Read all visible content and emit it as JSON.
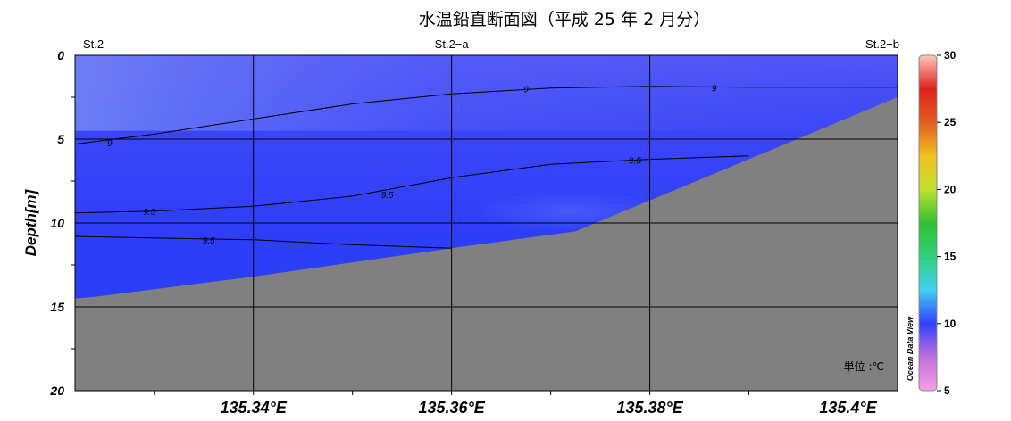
{
  "chart_data": {
    "type": "contour-section",
    "title": "水温鉛直断面図（平成 25 年  2 月分）",
    "ylabel": "Depth[m]",
    "unit_label": "単位 :℃",
    "credit": "Ocean Data View",
    "x_range": [
      135.322,
      135.405
    ],
    "y_range": [
      0,
      20
    ],
    "y_inverted": true,
    "xticks": [
      {
        "value": 135.34,
        "label": "135.34°E"
      },
      {
        "value": 135.36,
        "label": "135.36°E"
      },
      {
        "value": 135.38,
        "label": "135.38°E"
      },
      {
        "value": 135.4,
        "label": "135.4°E"
      }
    ],
    "yticks": [
      0,
      5,
      10,
      15,
      20
    ],
    "stations": [
      {
        "name": "St.2",
        "x": 135.322
      },
      {
        "name": "St.2−a",
        "x": 135.36
      },
      {
        "name": "St.2−b",
        "x": 135.405
      }
    ],
    "colorbar": {
      "min": 5,
      "max": 30,
      "ticks": [
        5,
        10,
        15,
        20,
        25,
        30
      ],
      "stops": [
        {
          "value": 5,
          "color": "#f4a0e8"
        },
        {
          "value": 7.5,
          "color": "#c070d8"
        },
        {
          "value": 10,
          "color": "#3040ff"
        },
        {
          "value": 12.5,
          "color": "#40d0f0"
        },
        {
          "value": 15,
          "color": "#30d080"
        },
        {
          "value": 17.5,
          "color": "#30c030"
        },
        {
          "value": 20,
          "color": "#c0e030"
        },
        {
          "value": 22.5,
          "color": "#f0c020"
        },
        {
          "value": 25,
          "color": "#e06020"
        },
        {
          "value": 27.5,
          "color": "#e02020"
        },
        {
          "value": 30,
          "color": "#f8c8b8"
        }
      ]
    },
    "contours": [
      {
        "level": "9",
        "points": [
          [
            135.322,
            5.3
          ],
          [
            135.33,
            4.7
          ],
          [
            135.34,
            3.8
          ],
          [
            135.35,
            2.9
          ],
          [
            135.36,
            2.3
          ],
          [
            135.37,
            1.95
          ],
          [
            135.38,
            1.85
          ],
          [
            135.39,
            1.9
          ],
          [
            135.405,
            1.9
          ]
        ],
        "labels": [
          [
            135.3255,
            5.2
          ],
          [
            135.3675,
            2.0
          ],
          [
            135.3865,
            1.95
          ]
        ]
      },
      {
        "level": "9.5",
        "points": [
          [
            135.322,
            9.4
          ],
          [
            135.33,
            9.3
          ],
          [
            135.34,
            9.0
          ],
          [
            135.35,
            8.4
          ],
          [
            135.36,
            7.3
          ],
          [
            135.37,
            6.5
          ],
          [
            135.38,
            6.2
          ],
          [
            135.39,
            6.0
          ]
        ],
        "labels": [
          [
            135.3295,
            9.3
          ],
          [
            135.3535,
            8.3
          ],
          [
            135.3785,
            6.25
          ]
        ]
      },
      {
        "level": "9.5",
        "points": [
          [
            135.322,
            10.8
          ],
          [
            135.33,
            10.9
          ],
          [
            135.34,
            11.0
          ],
          [
            135.35,
            11.3
          ],
          [
            135.36,
            11.5
          ]
        ],
        "labels": [
          [
            135.3355,
            11.0
          ]
        ]
      }
    ],
    "bathymetry": [
      [
        135.322,
        14.5
      ],
      [
        135.324,
        14.4
      ],
      [
        135.34,
        13.2
      ],
      [
        135.36,
        11.5
      ],
      [
        135.3725,
        10.5
      ],
      [
        135.405,
        2.5
      ]
    ]
  }
}
